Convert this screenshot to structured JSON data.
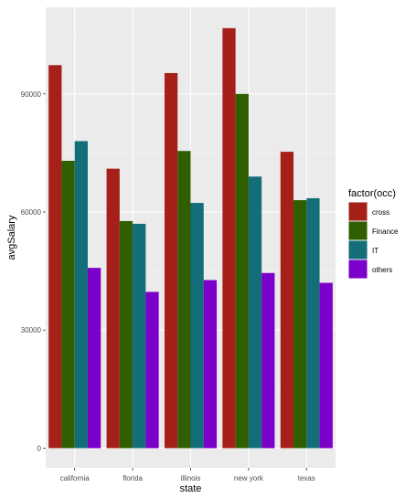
{
  "chart_data": {
    "type": "bar",
    "xlabel": "state",
    "ylabel": "avgSalary",
    "categories": [
      "california",
      "florida",
      "illinois",
      "new york",
      "texas"
    ],
    "series": [
      {
        "name": "cross",
        "color": "#a52019",
        "values": [
          97300,
          71000,
          95300,
          106700,
          75300
        ]
      },
      {
        "name": "Finance",
        "color": "#2f5f00",
        "values": [
          73000,
          57700,
          75500,
          90000,
          63000
        ]
      },
      {
        "name": "IT",
        "color": "#136e7a",
        "values": [
          78000,
          57000,
          62300,
          69000,
          63500
        ]
      },
      {
        "name": "others",
        "color": "#7b00c9",
        "values": [
          45800,
          39700,
          42700,
          44500,
          42000
        ]
      }
    ],
    "yticks": [
      0,
      30000,
      60000,
      90000
    ],
    "ylim": [
      -5000,
      112000
    ],
    "grid": true,
    "legend": {
      "title": "factor(occ)",
      "placement": "right"
    }
  }
}
